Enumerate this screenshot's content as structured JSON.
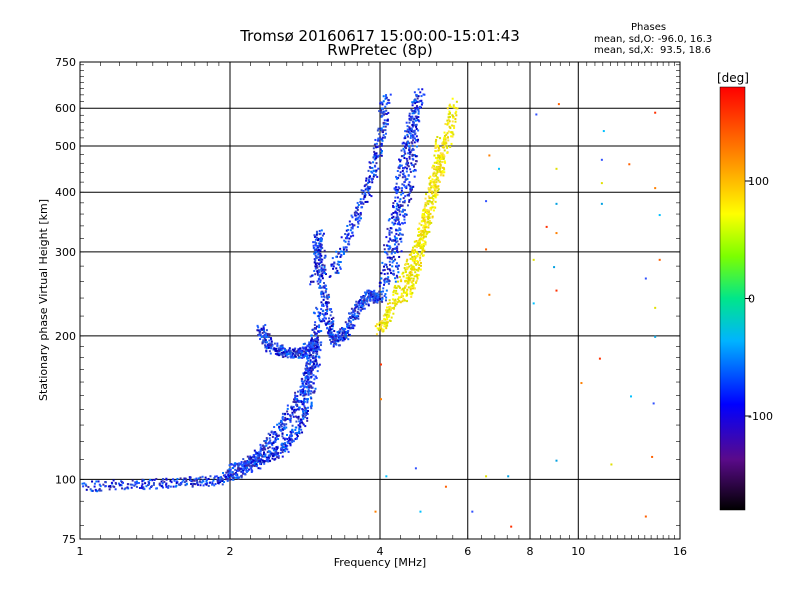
{
  "header": {
    "title_line1": "Tromsø 20160617 15:00:00-15:01:43",
    "title_line2": "RwPretec (8p)"
  },
  "stats": {
    "heading": "Phases",
    "line_o": "mean, sd,O: -96.0, 16.3",
    "line_x": "mean, sd,X:  93.5, 18.6"
  },
  "colorbar": {
    "label": "[deg]",
    "ticks": [
      "100",
      "0",
      "-100"
    ],
    "tick_values": [
      100,
      0,
      -100
    ],
    "range": [
      -180,
      180
    ]
  },
  "chart_data": {
    "type": "scatter",
    "title": "Tromsø 20160617 15:00:00-15:01:43",
    "subtitle": "RwPretec (8p)",
    "xlabel": "Frequency [MHz]",
    "ylabel": "Stationary phase Virtual Height [km]",
    "x_scale": "log",
    "y_scale": "log",
    "xlim": [
      1,
      16
    ],
    "ylim": [
      75,
      750
    ],
    "x_ticks": [
      1,
      2,
      4,
      6,
      8,
      10,
      16
    ],
    "x_tick_labels": [
      "1",
      "2",
      "4",
      "6",
      "8",
      "10",
      "16"
    ],
    "y_ticks": [
      75,
      100,
      200,
      300,
      400,
      500,
      600,
      750
    ],
    "y_tick_labels": [
      "75",
      "100",
      "200",
      "300",
      "400",
      "500",
      "600",
      "750"
    ],
    "grid": true,
    "series": [
      {
        "name": "O",
        "color_by": "phase",
        "segments": [
          {
            "x": [
              1.0,
              1.3,
              1.6,
              1.9,
              2.1,
              2.3,
              2.5,
              2.7,
              2.85,
              2.95,
              3.0
            ],
            "y": [
              97,
              98,
              99,
              100,
              104,
              110,
              115,
              125,
              145,
              180,
              230
            ]
          },
          {
            "x": [
              2.0,
              2.2,
              2.4,
              2.6,
              2.8,
              2.9,
              2.95
            ],
            "y": [
              105,
              110,
              120,
              135,
              155,
              175,
              200
            ]
          },
          {
            "x": [
              2.3,
              2.4,
              2.6,
              2.8,
              2.95
            ],
            "y": [
              208,
              190,
              185,
              185,
              195
            ]
          },
          {
            "x": [
              2.95,
              3.0,
              3.05,
              3.15,
              3.25,
              3.4,
              3.6,
              3.8,
              3.95
            ],
            "y": [
              260,
              330,
              260,
              215,
              195,
              205,
              230,
              245,
              240
            ]
          },
          {
            "x": [
              3.2,
              3.5,
              3.8,
              4.0,
              4.1
            ],
            "y": [
              270,
              340,
              420,
              520,
              640
            ]
          },
          {
            "x": [
              4.0,
              4.2,
              4.4,
              4.6,
              4.8
            ],
            "y": [
              240,
              330,
              440,
              550,
              650
            ]
          },
          {
            "x": [
              4.2,
              4.4,
              4.6,
              4.7
            ],
            "y": [
              260,
              350,
              450,
              600
            ]
          }
        ]
      },
      {
        "name": "X",
        "color_by": "phase",
        "segments": [
          {
            "x": [
              3.95,
              4.2,
              4.5,
              4.8,
              5.1,
              5.4,
              5.6
            ],
            "y": [
              205,
              230,
              270,
              320,
              400,
              500,
              620
            ]
          },
          {
            "x": [
              4.5,
              4.7,
              4.9,
              5.1,
              5.3
            ],
            "y": [
              240,
              280,
              340,
              420,
              520
            ]
          }
        ]
      }
    ],
    "sparse_points": [
      {
        "x": 6.6,
        "y": 480
      },
      {
        "x": 6.9,
        "y": 450
      },
      {
        "x": 8.2,
        "y": 585
      },
      {
        "x": 9.1,
        "y": 615
      },
      {
        "x": 9.0,
        "y": 450
      },
      {
        "x": 9.0,
        "y": 380
      },
      {
        "x": 8.6,
        "y": 340
      },
      {
        "x": 9.0,
        "y": 330
      },
      {
        "x": 11.2,
        "y": 540
      },
      {
        "x": 11.1,
        "y": 470
      },
      {
        "x": 12.6,
        "y": 460
      },
      {
        "x": 11.1,
        "y": 420
      },
      {
        "x": 11.1,
        "y": 380
      },
      {
        "x": 14.2,
        "y": 590
      },
      {
        "x": 14.2,
        "y": 410
      },
      {
        "x": 14.5,
        "y": 360
      },
      {
        "x": 6.5,
        "y": 385
      },
      {
        "x": 6.5,
        "y": 305
      },
      {
        "x": 8.1,
        "y": 290
      },
      {
        "x": 8.9,
        "y": 280
      },
      {
        "x": 9.0,
        "y": 250
      },
      {
        "x": 6.6,
        "y": 245
      },
      {
        "x": 8.1,
        "y": 235
      },
      {
        "x": 13.6,
        "y": 265
      },
      {
        "x": 14.5,
        "y": 290
      },
      {
        "x": 14.2,
        "y": 230
      },
      {
        "x": 14.2,
        "y": 200
      },
      {
        "x": 11.0,
        "y": 180
      },
      {
        "x": 10.1,
        "y": 160
      },
      {
        "x": 12.7,
        "y": 150
      },
      {
        "x": 14.1,
        "y": 145
      },
      {
        "x": 14.0,
        "y": 112
      },
      {
        "x": 11.6,
        "y": 108
      },
      {
        "x": 9.0,
        "y": 110
      },
      {
        "x": 4.0,
        "y": 175
      },
      {
        "x": 4.0,
        "y": 148
      },
      {
        "x": 4.1,
        "y": 102
      },
      {
        "x": 4.7,
        "y": 106
      },
      {
        "x": 5.4,
        "y": 97
      },
      {
        "x": 6.5,
        "y": 102
      },
      {
        "x": 7.2,
        "y": 102
      },
      {
        "x": 7.3,
        "y": 80
      },
      {
        "x": 3.9,
        "y": 86
      },
      {
        "x": 4.8,
        "y": 86
      },
      {
        "x": 6.1,
        "y": 86
      },
      {
        "x": 13.6,
        "y": 84
      }
    ]
  }
}
